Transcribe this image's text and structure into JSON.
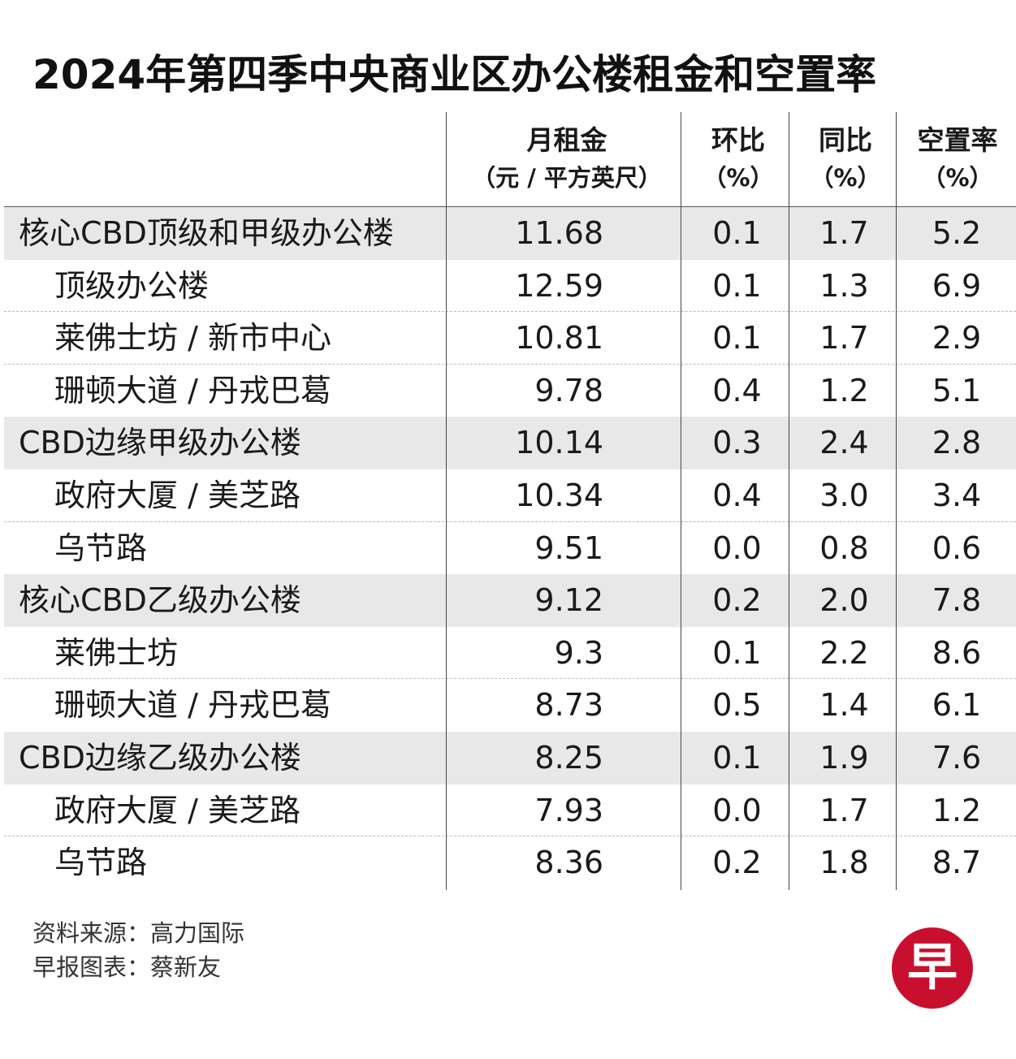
{
  "title": "2024年第四季中央商业区办公楼租金和空置率",
  "chart_data": {
    "type": "table",
    "columns": [
      {
        "l1": "月租金",
        "l2": "（元 / 平方英尺）"
      },
      {
        "l1": "环比",
        "l2": "（%）"
      },
      {
        "l1": "同比",
        "l2": "（%）"
      },
      {
        "l1": "空置率",
        "l2": "（%）"
      }
    ],
    "rows": [
      {
        "name": "核心CBD顶级和甲级办公楼",
        "rent": "11.68",
        "qoq": "0.1",
        "yoy": "1.7",
        "vacancy": "5.2",
        "level": "group"
      },
      {
        "name": "顶级办公楼",
        "rent": "12.59",
        "qoq": "0.1",
        "yoy": "1.3",
        "vacancy": "6.9",
        "level": "sub"
      },
      {
        "name": "莱佛士坊 / 新市中心",
        "rent": "10.81",
        "qoq": "0.1",
        "yoy": "1.7",
        "vacancy": "2.9",
        "level": "sub"
      },
      {
        "name": "珊顿大道 / 丹戎巴葛",
        "rent": "9.78",
        "qoq": "0.4",
        "yoy": "1.2",
        "vacancy": "5.1",
        "level": "sub"
      },
      {
        "name": "CBD边缘甲级办公楼",
        "rent": "10.14",
        "qoq": "0.3",
        "yoy": "2.4",
        "vacancy": "2.8",
        "level": "group"
      },
      {
        "name": "政府大厦 / 美芝路",
        "rent": "10.34",
        "qoq": "0.4",
        "yoy": "3.0",
        "vacancy": "3.4",
        "level": "sub"
      },
      {
        "name": "乌节路",
        "rent": "9.51",
        "qoq": "0.0",
        "yoy": "0.8",
        "vacancy": "0.6",
        "level": "sub"
      },
      {
        "name": "核心CBD乙级办公楼",
        "rent": "9.12",
        "qoq": "0.2",
        "yoy": "2.0",
        "vacancy": "7.8",
        "level": "group"
      },
      {
        "name": "莱佛士坊",
        "rent": "9.3",
        "qoq": "0.1",
        "yoy": "2.2",
        "vacancy": "8.6",
        "level": "sub"
      },
      {
        "name": "珊顿大道 / 丹戎巴葛",
        "rent": "8.73",
        "qoq": "0.5",
        "yoy": "1.4",
        "vacancy": "6.1",
        "level": "sub"
      },
      {
        "name": "CBD边缘乙级办公楼",
        "rent": "8.25",
        "qoq": "0.1",
        "yoy": "1.9",
        "vacancy": "7.6",
        "level": "group"
      },
      {
        "name": "政府大厦 / 美芝路",
        "rent": "7.93",
        "qoq": "0.0",
        "yoy": "1.7",
        "vacancy": "1.2",
        "level": "sub"
      },
      {
        "name": "乌节路",
        "rent": "8.36",
        "qoq": "0.2",
        "yoy": "1.8",
        "vacancy": "8.7",
        "level": "sub"
      }
    ]
  },
  "footer": {
    "source": "资料来源：高力国际",
    "credit": "早报图表：蔡新友"
  },
  "logo": {
    "char": "早",
    "color": "#c8102e"
  }
}
